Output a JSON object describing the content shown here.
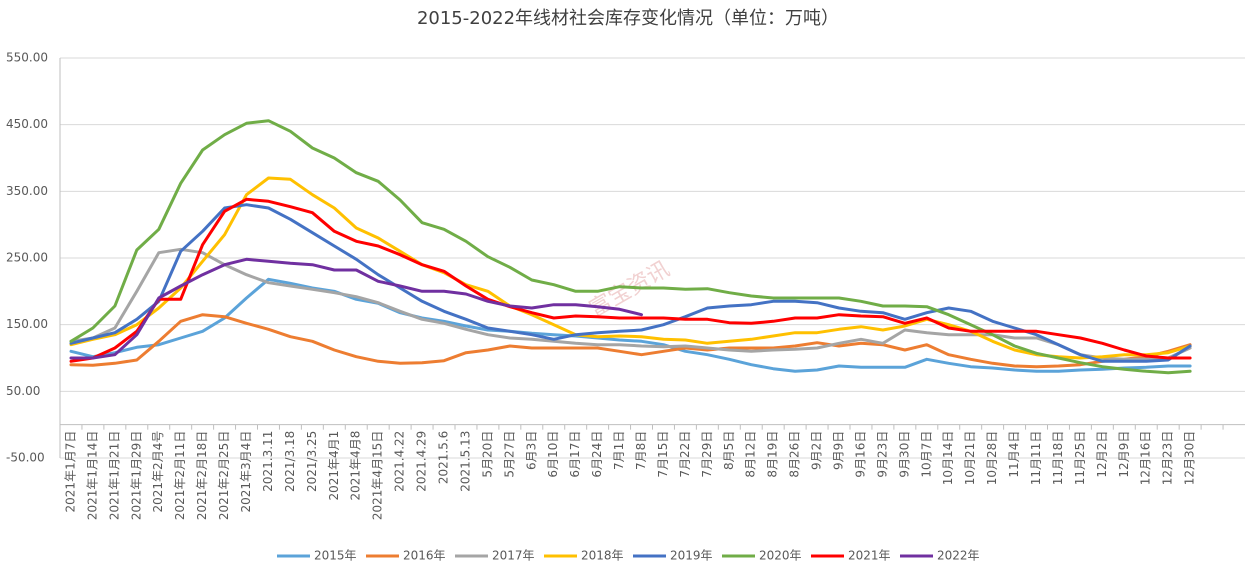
{
  "chart_data": {
    "type": "line",
    "title": "2015-2022年线材社会库存变化情况（单位：万吨）",
    "watermark": "富宝资讯",
    "categories": [
      "2021年1月7日",
      "2021年1月14日",
      "2021年1月21日",
      "2021年1月29日",
      "2021年2月4号",
      "2021年2月11日",
      "2021年2月18日",
      "2021年2月25日",
      "2021年3月4日",
      "2021.3.11",
      "2021/3.18",
      "2021/3.25",
      "2021年4月1",
      "2021年4月8",
      "2021年4月15日",
      "2021.4.22",
      "2021.4.29",
      "2021.5.6",
      "2021.5.13",
      "5月20日",
      "5月27日",
      "6月3日",
      "6月10日",
      "6月17日",
      "6月24日",
      "7月1日",
      "7月8日",
      "7月15日",
      "7月22日",
      "7月29日",
      "8月5日",
      "8月12日",
      "8月19日",
      "8月26日",
      "9月2日",
      "9月9日",
      "9月16日",
      "9月23日",
      "9月30日",
      "10月7日",
      "10月14日",
      "10月21日",
      "10月28日",
      "11月4日",
      "11月11日",
      "11月18日",
      "11月25日",
      "12月2日",
      "12月9日",
      "12月16日",
      "12月23日",
      "12月30日",
      null,
      null
    ],
    "ylim": [
      -50,
      550
    ],
    "yticks": [
      {
        "value": -50,
        "label": "-50.00"
      },
      {
        "value": 50,
        "label": "50.00"
      },
      {
        "value": 150,
        "label": "150.00"
      },
      {
        "value": 250,
        "label": "250.00"
      },
      {
        "value": 350,
        "label": "350.00"
      },
      {
        "value": 450,
        "label": "450.00"
      },
      {
        "value": 550,
        "label": "550.00"
      }
    ],
    "grid": true,
    "legend": "bottom",
    "series": [
      {
        "name": "2015年",
        "color": "#5ba3d9",
        "values": [
          110,
          102,
          108,
          116,
          120,
          130,
          140,
          160,
          190,
          218,
          212,
          205,
          200,
          188,
          182,
          168,
          160,
          155,
          148,
          142,
          140,
          137,
          135,
          133,
          130,
          127,
          125,
          120,
          110,
          105,
          98,
          90,
          84,
          80,
          82,
          88,
          86,
          86,
          86,
          98,
          92,
          87,
          85,
          82,
          80,
          80,
          82,
          83,
          85,
          86,
          88,
          88,
          null,
          null
        ]
      },
      {
        "name": "2016年",
        "color": "#ed7d31",
        "values": [
          90,
          89,
          92,
          97,
          125,
          155,
          165,
          162,
          152,
          143,
          132,
          125,
          112,
          102,
          95,
          92,
          93,
          96,
          108,
          112,
          118,
          115,
          115,
          115,
          115,
          110,
          105,
          110,
          115,
          112,
          115,
          115,
          115,
          118,
          123,
          118,
          122,
          120,
          112,
          120,
          105,
          98,
          92,
          88,
          87,
          88,
          90,
          95,
          98,
          102,
          110,
          120,
          null,
          null
        ]
      },
      {
        "name": "2017年",
        "color": "#a5a5a5",
        "values": [
          125,
          130,
          145,
          200,
          258,
          263,
          258,
          240,
          225,
          213,
          208,
          203,
          198,
          192,
          183,
          170,
          158,
          152,
          143,
          135,
          130,
          128,
          125,
          122,
          120,
          120,
          118,
          117,
          118,
          115,
          112,
          110,
          112,
          113,
          115,
          122,
          128,
          122,
          142,
          138,
          135,
          135,
          135,
          130,
          130,
          120,
          105,
          100,
          98,
          98,
          100,
          115,
          null,
          null
        ]
      },
      {
        "name": "2018年",
        "color": "#ffc000",
        "values": [
          120,
          128,
          135,
          150,
          175,
          205,
          245,
          285,
          345,
          370,
          368,
          345,
          325,
          295,
          280,
          260,
          240,
          228,
          210,
          200,
          178,
          165,
          150,
          135,
          132,
          133,
          132,
          128,
          127,
          122,
          125,
          128,
          133,
          138,
          138,
          143,
          147,
          142,
          148,
          158,
          150,
          140,
          125,
          112,
          105,
          102,
          100,
          102,
          105,
          105,
          108,
          118,
          null,
          null
        ]
      },
      {
        "name": "2019年",
        "color": "#4472c4",
        "values": [
          122,
          130,
          138,
          158,
          185,
          260,
          290,
          325,
          330,
          325,
          308,
          288,
          268,
          248,
          225,
          205,
          185,
          170,
          158,
          145,
          140,
          135,
          128,
          135,
          138,
          140,
          142,
          150,
          162,
          175,
          178,
          180,
          185,
          185,
          183,
          175,
          170,
          168,
          158,
          168,
          175,
          170,
          155,
          145,
          135,
          120,
          105,
          95,
          95,
          95,
          97,
          118,
          null,
          null
        ]
      },
      {
        "name": "2020年",
        "color": "#70ad47",
        "values": [
          125,
          145,
          178,
          262,
          293,
          362,
          412,
          435,
          452,
          456,
          440,
          415,
          400,
          378,
          365,
          337,
          303,
          293,
          275,
          252,
          236,
          217,
          210,
          200,
          200,
          207,
          205,
          205,
          203,
          204,
          198,
          193,
          190,
          190,
          190,
          190,
          185,
          178,
          178,
          177,
          165,
          150,
          135,
          118,
          107,
          100,
          93,
          87,
          83,
          80,
          78,
          80,
          null,
          null
        ]
      },
      {
        "name": "2021年",
        "color": "#ff0000",
        "values": [
          95,
          100,
          115,
          140,
          188,
          188,
          270,
          320,
          338,
          335,
          327,
          318,
          290,
          275,
          268,
          255,
          240,
          230,
          208,
          188,
          177,
          168,
          160,
          163,
          162,
          160,
          160,
          160,
          158,
          158,
          153,
          152,
          155,
          160,
          160,
          165,
          163,
          162,
          152,
          160,
          145,
          140,
          140,
          140,
          140,
          135,
          130,
          122,
          112,
          103,
          100,
          100,
          null,
          null
        ]
      },
      {
        "name": "2022年",
        "color": "#7030a0",
        "values": [
          100,
          100,
          105,
          135,
          190,
          208,
          225,
          240,
          248,
          245,
          242,
          240,
          232,
          232,
          215,
          208,
          200,
          200,
          196,
          185,
          178,
          175,
          180,
          180,
          177,
          173,
          165,
          null,
          null,
          null,
          null,
          null,
          null,
          null,
          null,
          null,
          null,
          null,
          null,
          null,
          null,
          null,
          null,
          null,
          null,
          null,
          null,
          null,
          null,
          null,
          null,
          null,
          null,
          null
        ]
      }
    ]
  }
}
